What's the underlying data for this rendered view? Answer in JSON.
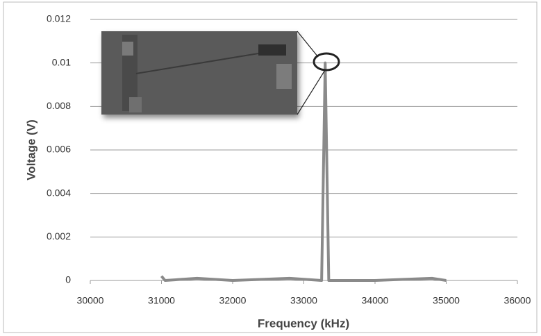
{
  "chart_data": {
    "type": "line",
    "x_label": "Frequency (kHz)",
    "y_label": "Voltage (V)",
    "x": [
      31000,
      31050,
      31500,
      32000,
      32800,
      33250,
      33300,
      33350,
      34000,
      34800,
      35000
    ],
    "values": [
      0.0002,
      0,
      0.0001,
      0,
      0.0001,
      0,
      0.01,
      0,
      0,
      0.0001,
      0
    ],
    "color": "#8a8a8a",
    "xlim": [
      30000,
      36000
    ],
    "xticks": [
      30000,
      31000,
      32000,
      33000,
      34000,
      35000,
      36000
    ],
    "ylim": [
      0,
      0.012
    ],
    "yticks": [
      0,
      0.002,
      0.004,
      0.006,
      0.008,
      0.01,
      0.012
    ],
    "grid": true
  }
}
